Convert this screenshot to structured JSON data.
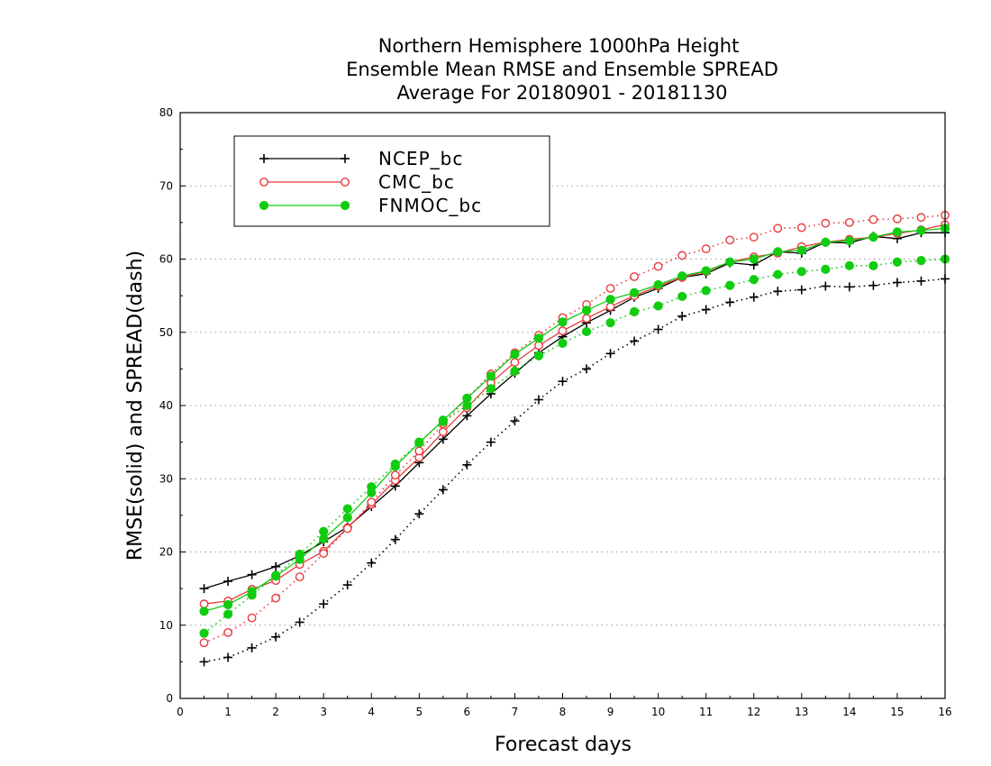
{
  "chart_data": {
    "type": "line",
    "title": [
      "Northern Hemisphere 1000hPa Height",
      "Ensemble Mean RMSE and Ensemble SPREAD",
      "Average For 20180901 - 20181130"
    ],
    "xlabel": "Forecast days",
    "ylabel": "RMSE(solid) and SPREAD(dash)",
    "xlim": [
      0,
      16
    ],
    "ylim": [
      0,
      80
    ],
    "x_ticks": [
      0,
      1,
      2,
      3,
      4,
      5,
      6,
      7,
      8,
      9,
      10,
      11,
      12,
      13,
      14,
      15,
      16
    ],
    "y_ticks": [
      0,
      10,
      20,
      30,
      40,
      50,
      60,
      70,
      80
    ],
    "grid": "horizontal dotted",
    "legend_position": "top-left",
    "x": [
      0.5,
      1,
      1.5,
      2,
      2.5,
      3,
      3.5,
      4,
      4.5,
      5,
      5.5,
      6,
      6.5,
      7,
      7.5,
      8,
      8.5,
      9,
      9.5,
      10,
      10.5,
      11,
      11.5,
      12,
      12.5,
      13,
      13.5,
      14,
      14.5,
      15,
      15.5,
      16
    ],
    "series": [
      {
        "name": "NCEP_bc",
        "metric": "RMSE",
        "style": "solid",
        "marker": "plus",
        "color": "#000000",
        "values": [
          15.0,
          16.0,
          16.9,
          18.0,
          19.5,
          21.4,
          23.4,
          26.2,
          29.0,
          32.2,
          35.4,
          38.6,
          41.6,
          44.4,
          47.2,
          49.4,
          51.3,
          53.0,
          54.8,
          56.0,
          57.5,
          58.0,
          59.5,
          59.2,
          61.0,
          60.8,
          62.3,
          62.2,
          63.1,
          62.8,
          63.6,
          63.6
        ]
      },
      {
        "name": "NCEP_bc",
        "metric": "SPREAD",
        "style": "dash",
        "marker": "plus",
        "color": "#000000",
        "values": [
          5.0,
          5.6,
          6.9,
          8.4,
          10.4,
          12.9,
          15.5,
          18.5,
          21.7,
          25.2,
          28.5,
          31.9,
          35.0,
          37.9,
          40.8,
          43.3,
          45.0,
          47.1,
          48.8,
          50.4,
          52.2,
          53.1,
          54.1,
          54.8,
          55.6,
          55.8,
          56.3,
          56.2,
          56.4,
          56.8,
          57.0,
          57.3
        ]
      },
      {
        "name": "CMC_bc",
        "metric": "RMSE",
        "style": "solid",
        "marker": "open-circle",
        "color": "#e8393c",
        "values": [
          12.9,
          13.3,
          14.9,
          16.1,
          18.3,
          20.1,
          23.3,
          26.5,
          29.8,
          32.9,
          36.4,
          39.7,
          43.1,
          45.9,
          48.2,
          50.2,
          51.9,
          53.5,
          55.0,
          56.3,
          57.5,
          58.3,
          59.6,
          60.3,
          60.8,
          61.7,
          62.3,
          62.7,
          63.0,
          63.5,
          64.0,
          64.7
        ]
      },
      {
        "name": "CMC_bc",
        "metric": "SPREAD",
        "style": "dash",
        "marker": "open-circle",
        "color": "#e8393c",
        "values": [
          7.6,
          9.0,
          11.0,
          13.7,
          16.6,
          19.8,
          23.2,
          26.8,
          30.5,
          33.8,
          37.5,
          41.0,
          44.3,
          47.2,
          49.6,
          52.0,
          53.8,
          56.0,
          57.6,
          59.0,
          60.5,
          61.4,
          62.6,
          63.0,
          64.2,
          64.3,
          64.9,
          65.0,
          65.4,
          65.5,
          65.7,
          66.0
        ]
      },
      {
        "name": "FNMOC_bc",
        "metric": "RMSE",
        "style": "solid",
        "marker": "filled-circle",
        "color": "#11cc11",
        "values": [
          11.9,
          12.8,
          14.6,
          16.7,
          19.0,
          21.8,
          24.7,
          28.1,
          31.7,
          34.9,
          38.0,
          41.0,
          44.0,
          47.0,
          49.2,
          51.4,
          53.0,
          54.5,
          55.4,
          56.5,
          57.7,
          58.4,
          59.6,
          60.0,
          61.0,
          61.2,
          62.3,
          62.5,
          63.0,
          63.7,
          63.9,
          64.2
        ]
      },
      {
        "name": "FNMOC_bc",
        "metric": "SPREAD",
        "style": "dash",
        "marker": "filled-circle",
        "color": "#11cc11",
        "values": [
          8.9,
          11.5,
          14.1,
          16.8,
          19.7,
          22.8,
          25.9,
          28.9,
          32.0,
          35.0,
          37.8,
          40.0,
          42.3,
          44.7,
          46.8,
          48.5,
          50.1,
          51.3,
          52.8,
          53.6,
          54.9,
          55.7,
          56.4,
          57.2,
          57.9,
          58.3,
          58.6,
          59.1,
          59.1,
          59.6,
          59.8,
          60.0
        ]
      }
    ],
    "legend": [
      {
        "label": "NCEP_bc",
        "marker": "plus",
        "color": "#000000"
      },
      {
        "label": "CMC_bc",
        "marker": "open-circle",
        "color": "#e8393c"
      },
      {
        "label": "FNMOC_bc",
        "marker": "filled-circle",
        "color": "#11cc11"
      }
    ]
  }
}
